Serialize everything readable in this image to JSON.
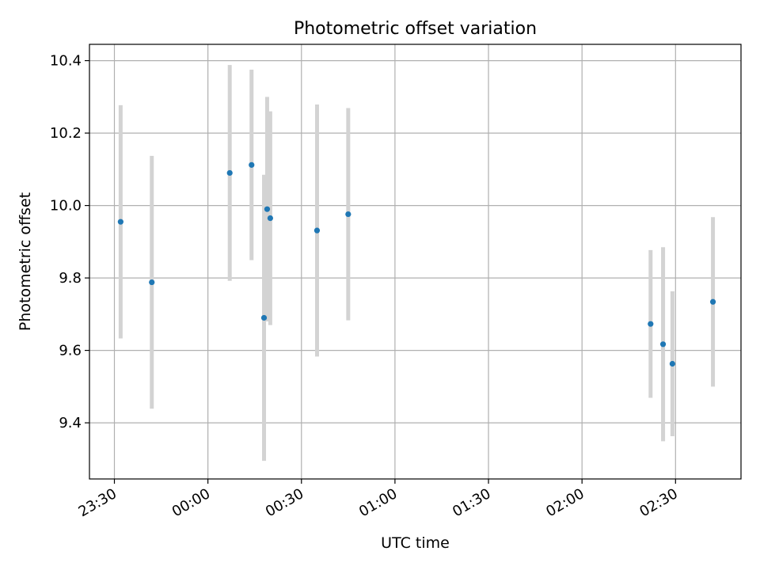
{
  "chart_data": {
    "type": "scatter",
    "title": "Photometric offset variation",
    "xlabel": "UTC time",
    "ylabel": "Photometric offset",
    "xlim": [
      "23:22",
      "02:51"
    ],
    "ylim": [
      9.245,
      10.445
    ],
    "grid": true,
    "x_ticks": [
      "23:30",
      "00:00",
      "00:30",
      "01:00",
      "01:30",
      "02:00",
      "02:30"
    ],
    "y_ticks": [
      "9.4",
      "9.6",
      "9.8",
      "10.0",
      "10.2",
      "10.4"
    ],
    "colors": {
      "points": "#1f77b4",
      "errorbars": "#d3d3d3",
      "grid": "#b0b0b0"
    },
    "points": [
      {
        "x": "23:32",
        "y": 9.955,
        "yerr": 0.322
      },
      {
        "x": "23:42",
        "y": 9.788,
        "yerr": 0.349
      },
      {
        "x": "00:07",
        "y": 10.09,
        "yerr": 0.298
      },
      {
        "x": "00:14",
        "y": 10.112,
        "yerr": 0.263
      },
      {
        "x": "00:18",
        "y": 9.69,
        "yerr": 0.395
      },
      {
        "x": "00:19",
        "y": 9.99,
        "yerr": 0.31
      },
      {
        "x": "00:20",
        "y": 9.965,
        "yerr": 0.295
      },
      {
        "x": "00:35",
        "y": 9.931,
        "yerr": 0.348
      },
      {
        "x": "00:45",
        "y": 9.976,
        "yerr": 0.293
      },
      {
        "x": "02:22",
        "y": 9.673,
        "yerr": 0.204
      },
      {
        "x": "02:26",
        "y": 9.617,
        "yerr": 0.268
      },
      {
        "x": "02:29",
        "y": 9.563,
        "yerr": 0.2
      },
      {
        "x": "02:42",
        "y": 9.734,
        "yerr": 0.234
      }
    ]
  }
}
